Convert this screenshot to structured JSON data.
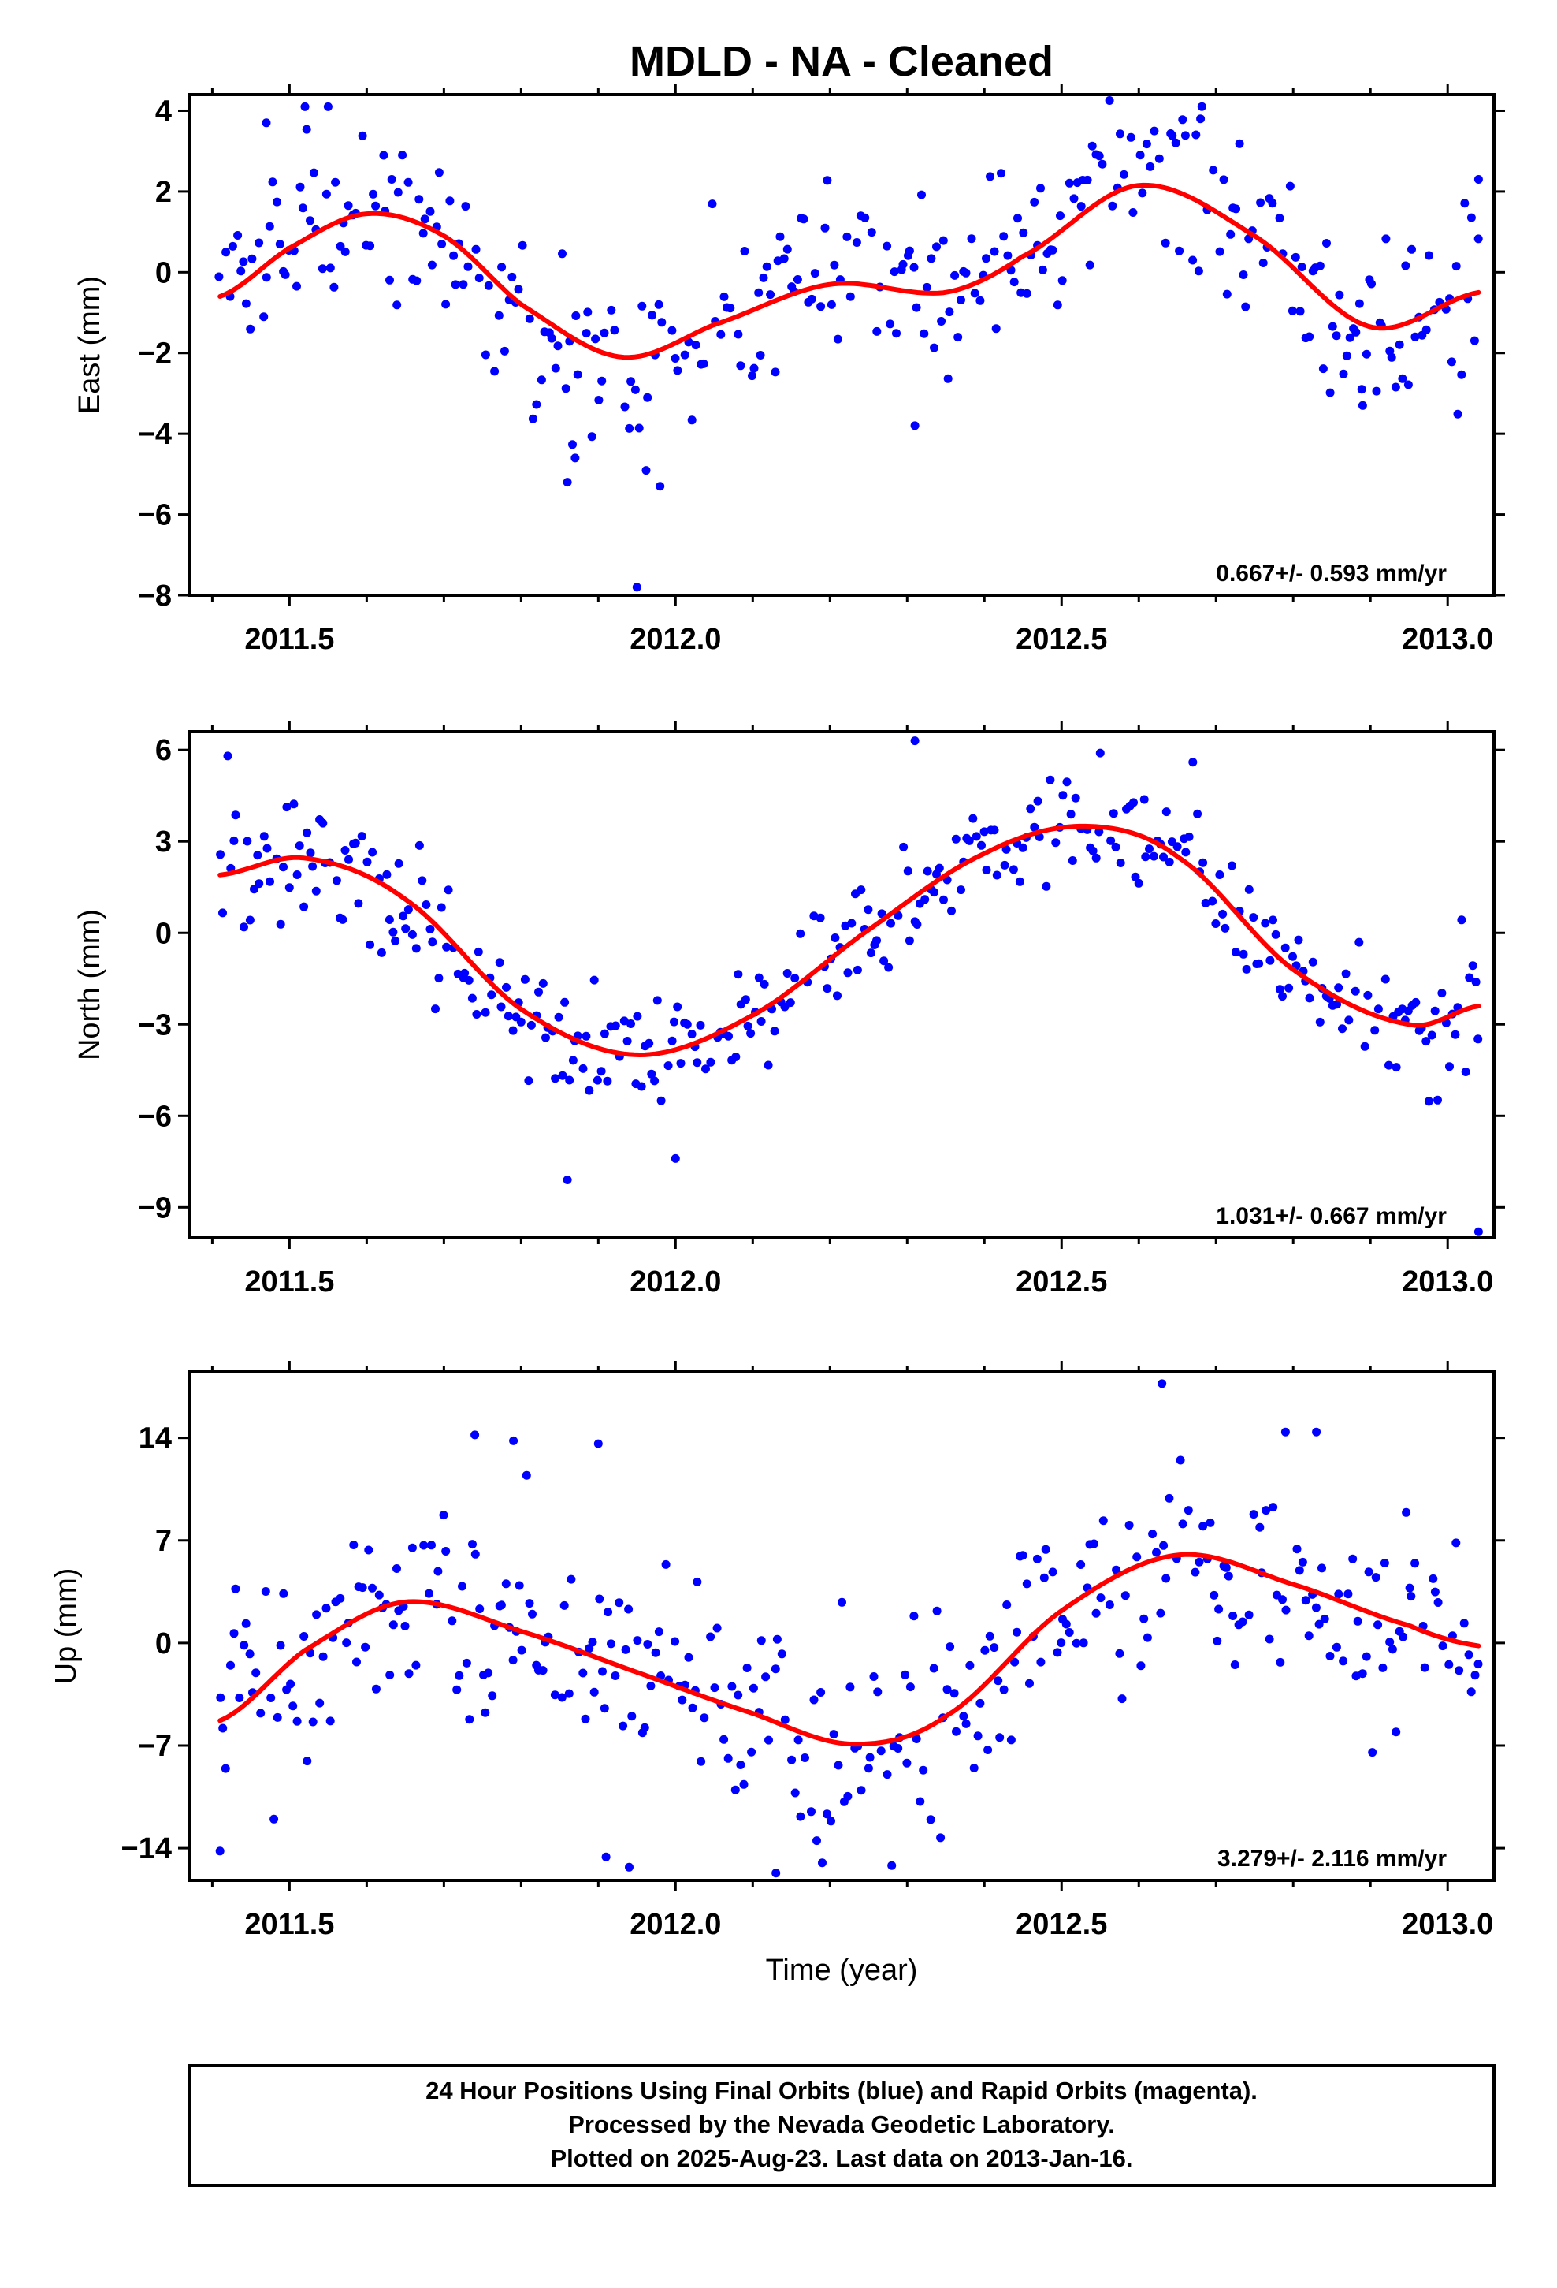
{
  "title": "MDLD  - NA - Cleaned",
  "xlabel": "Time (year)",
  "footer": {
    "line1": "24 Hour Positions Using Final Orbits (blue) and Rapid Orbits (magenta).",
    "line2": "Processed by the Nevada Geodetic Laboratory.",
    "line3": "Plotted on 2025-Aug-23. Last data on 2013-Jan-16."
  },
  "colors": {
    "points": "#0000ff",
    "fit": "#ff0000",
    "frame": "#000000"
  },
  "chart_data": [
    {
      "type": "scatter",
      "ylabel": "East (mm)",
      "xlim": [
        2011.37,
        2013.06
      ],
      "ylim": [
        -8,
        4.4
      ],
      "x_ticks": [
        2011.5,
        2012.0,
        2012.5,
        2013.0
      ],
      "x_tick_labels": [
        "2011.5",
        "2012.0",
        "2012.5",
        "2013.0"
      ],
      "y_ticks": [
        -8,
        -6,
        -4,
        -2,
        0,
        2,
        4
      ],
      "y_tick_labels": [
        "−8",
        "−6",
        "−4",
        "−2",
        "0",
        "2",
        "4"
      ],
      "rate_text": "0.667+/- 0.593 mm/yr",
      "data_start": 2011.41,
      "data_end": 2013.04,
      "fit": {
        "x": [
          2011.41,
          2011.5,
          2011.6,
          2011.7,
          2011.8,
          2011.93,
          2012.05,
          2012.2,
          2012.35,
          2012.45,
          2012.6,
          2012.75,
          2012.9,
          2013.04
        ],
        "y": [
          -0.6,
          0.6,
          1.45,
          0.9,
          -0.8,
          -2.1,
          -1.3,
          -0.3,
          -0.5,
          0.4,
          2.15,
          0.9,
          -1.35,
          -0.5
        ]
      },
      "noise_sd": 1.1,
      "outliers": [
        {
          "x": 2011.47,
          "y": 3.7
        },
        {
          "x": 2011.52,
          "y": 4.1
        },
        {
          "x": 2011.55,
          "y": 4.1
        },
        {
          "x": 2011.86,
          "y": -5.2
        },
        {
          "x": 2011.87,
          "y": -4.6
        },
        {
          "x": 2011.95,
          "y": -7.8
        },
        {
          "x": 2011.98,
          "y": -5.3
        },
        {
          "x": 2012.31,
          "y": -3.8
        },
        {
          "x": 2012.68,
          "y": 3.8
        },
        {
          "x": 2012.62,
          "y": 3.5
        },
        {
          "x": 2012.89,
          "y": -3.3
        },
        {
          "x": 2013.04,
          "y": 2.3
        }
      ]
    },
    {
      "type": "scatter",
      "ylabel": "North (mm)",
      "xlim": [
        2011.37,
        2013.06
      ],
      "ylim": [
        -10,
        6.6
      ],
      "x_ticks": [
        2011.5,
        2012.0,
        2012.5,
        2013.0
      ],
      "x_tick_labels": [
        "2011.5",
        "2012.0",
        "2012.5",
        "2013.0"
      ],
      "y_ticks": [
        -9,
        -6,
        -3,
        0,
        3,
        6
      ],
      "y_tick_labels": [
        "−9",
        "−6",
        "−3",
        "0",
        "3",
        "6"
      ],
      "rate_text": "1.031+/- 0.667 mm/yr",
      "data_start": 2011.41,
      "data_end": 2013.04,
      "fit": {
        "x": [
          2011.41,
          2011.52,
          2011.65,
          2011.8,
          2011.95,
          2012.1,
          2012.25,
          2012.4,
          2012.53,
          2012.65,
          2012.8,
          2012.95,
          2013.04
        ],
        "y": [
          1.9,
          2.45,
          1.1,
          -2.5,
          -4.0,
          -2.7,
          0.1,
          2.6,
          3.5,
          2.5,
          -1.2,
          -3.0,
          -2.4
        ]
      },
      "noise_sd": 0.95,
      "outliers": [
        {
          "x": 2011.42,
          "y": 5.8
        },
        {
          "x": 2011.86,
          "y": -8.1
        },
        {
          "x": 2012.0,
          "y": -7.4
        },
        {
          "x": 2012.31,
          "y": 6.3
        },
        {
          "x": 2012.55,
          "y": 5.9
        },
        {
          "x": 2012.67,
          "y": 5.6
        },
        {
          "x": 2013.04,
          "y": -9.8
        }
      ]
    },
    {
      "type": "scatter",
      "ylabel": "Up (mm)",
      "xlim": [
        2011.37,
        2013.06
      ],
      "ylim": [
        -16.2,
        18.5
      ],
      "x_ticks": [
        2011.5,
        2012.0,
        2012.5,
        2013.0
      ],
      "x_tick_labels": [
        "2011.5",
        "2012.0",
        "2012.5",
        "2013.0"
      ],
      "y_ticks": [
        -14,
        -7,
        0,
        7,
        14
      ],
      "y_tick_labels": [
        "−14",
        "−7",
        "0",
        "7",
        "14"
      ],
      "rate_text": "3.279+/- 2.116 mm/yr",
      "data_start": 2011.41,
      "data_end": 2013.04,
      "fit": {
        "x": [
          2011.41,
          2011.52,
          2011.65,
          2011.8,
          2011.95,
          2012.1,
          2012.23,
          2012.35,
          2012.5,
          2012.65,
          2012.8,
          2012.95,
          2013.04
        ],
        "y": [
          -5.3,
          -0.5,
          2.8,
          0.8,
          -2.0,
          -4.8,
          -6.9,
          -5.0,
          2.2,
          6.0,
          4.0,
          1.2,
          -0.2
        ]
      },
      "noise_sd": 3.6,
      "outliers": [
        {
          "x": 2011.74,
          "y": 14.2
        },
        {
          "x": 2011.79,
          "y": 13.8
        },
        {
          "x": 2011.9,
          "y": 13.6
        },
        {
          "x": 2011.91,
          "y": -14.6
        },
        {
          "x": 2011.94,
          "y": -15.3
        },
        {
          "x": 2012.13,
          "y": -15.7
        },
        {
          "x": 2012.19,
          "y": -15.0
        },
        {
          "x": 2012.63,
          "y": 17.7
        },
        {
          "x": 2012.79,
          "y": 14.4
        },
        {
          "x": 2012.83,
          "y": 14.4
        },
        {
          "x": 2011.41,
          "y": -14.2
        }
      ]
    }
  ]
}
